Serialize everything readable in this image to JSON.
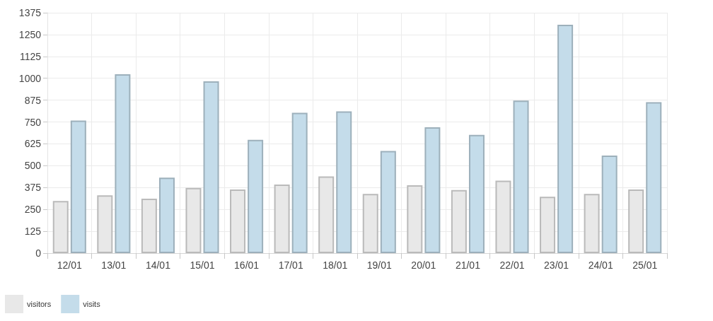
{
  "chart_data": {
    "type": "bar",
    "categories": [
      "12/01",
      "13/01",
      "14/01",
      "15/01",
      "16/01",
      "17/01",
      "18/01",
      "19/01",
      "20/01",
      "21/01",
      "22/01",
      "23/01",
      "24/01",
      "25/01"
    ],
    "series": [
      {
        "name": "visitors",
        "color": "#e8e8e8",
        "values": [
          298,
          331,
          311,
          373,
          364,
          392,
          439,
          339,
          388,
          361,
          415,
          323,
          339,
          364
        ]
      },
      {
        "name": "visits",
        "color": "#c4dcea",
        "values": [
          758,
          1023,
          432,
          983,
          648,
          803,
          811,
          584,
          720,
          676,
          873,
          1306,
          558,
          863
        ]
      }
    ],
    "ylim": [
      0,
      1375
    ],
    "yticks": [
      0,
      125,
      250,
      375,
      500,
      625,
      750,
      875,
      1000,
      1125,
      1250,
      1375
    ],
    "grid": true,
    "legend": "bottom left"
  }
}
